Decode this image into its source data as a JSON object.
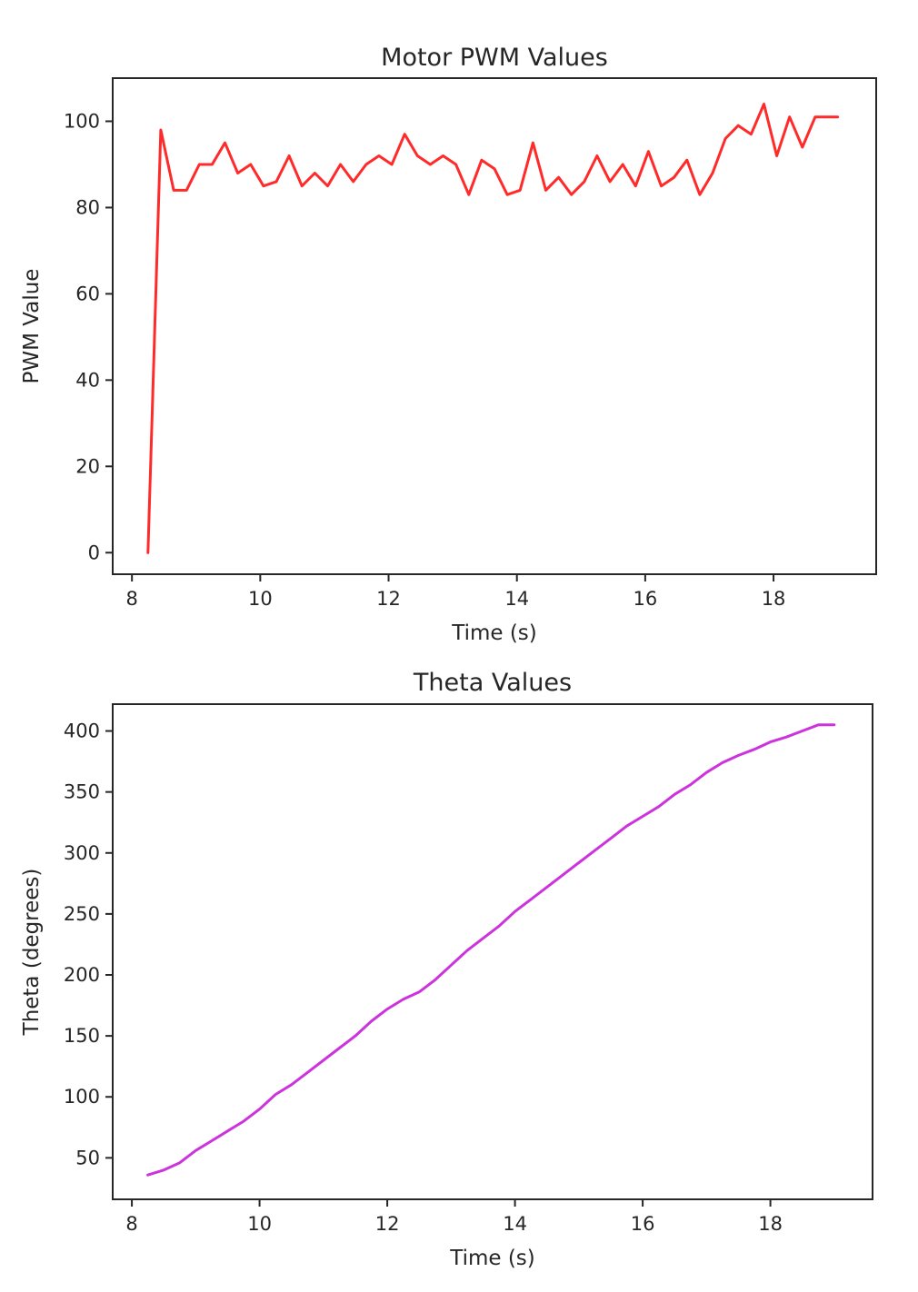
{
  "chart_data": [
    {
      "type": "line",
      "title": "Motor PWM Values",
      "xlabel": "Time (s)",
      "ylabel": "PWM Value",
      "xlim": [
        7.7,
        19.6
      ],
      "ylim": [
        -5,
        110
      ],
      "xticks": [
        8,
        10,
        12,
        14,
        16,
        18
      ],
      "yticks": [
        0,
        20,
        40,
        60,
        80,
        100
      ],
      "grid": false,
      "series": [
        {
          "color": "#ff2a2a",
          "x": [
            8.25,
            8.45,
            8.65,
            8.85,
            9.05,
            9.25,
            9.45,
            9.65,
            9.85,
            10.05,
            10.25,
            10.45,
            10.65,
            10.85,
            11.05,
            11.25,
            11.45,
            11.65,
            11.85,
            12.05,
            12.25,
            12.45,
            12.65,
            12.85,
            13.05,
            13.25,
            13.45,
            13.65,
            13.85,
            14.05,
            14.25,
            14.45,
            14.65,
            14.85,
            15.05,
            15.25,
            15.45,
            15.65,
            15.85,
            16.05,
            16.25,
            16.45,
            16.65,
            16.85,
            17.05,
            17.25,
            17.45,
            17.65,
            17.85,
            18.05,
            18.25,
            18.45,
            18.65,
            18.85,
            19.0
          ],
          "y": [
            0,
            98,
            84,
            84,
            90,
            90,
            95,
            88,
            90,
            85,
            86,
            92,
            85,
            88,
            85,
            90,
            86,
            90,
            92,
            90,
            97,
            92,
            90,
            92,
            90,
            83,
            91,
            89,
            83,
            84,
            95,
            84,
            87,
            83,
            86,
            92,
            86,
            90,
            85,
            93,
            85,
            87,
            91,
            83,
            88,
            96,
            99,
            97,
            104,
            92,
            101,
            94,
            101,
            101,
            101
          ]
        }
      ]
    },
    {
      "type": "line",
      "title": "Theta Values",
      "xlabel": "Time (s)",
      "ylabel": "Theta (degrees)",
      "xlim": [
        7.7,
        19.6
      ],
      "ylim": [
        16,
        422
      ],
      "xticks": [
        8,
        10,
        12,
        14,
        16,
        18
      ],
      "yticks": [
        50,
        100,
        150,
        200,
        250,
        300,
        350,
        400
      ],
      "grid": false,
      "series": [
        {
          "color": "#cc33dd",
          "x": [
            8.25,
            8.5,
            8.75,
            9.0,
            9.25,
            9.5,
            9.75,
            10.0,
            10.25,
            10.5,
            10.75,
            11.0,
            11.25,
            11.5,
            11.75,
            12.0,
            12.25,
            12.5,
            12.75,
            13.0,
            13.25,
            13.5,
            13.75,
            14.0,
            14.25,
            14.5,
            14.75,
            15.0,
            15.25,
            15.5,
            15.75,
            16.0,
            16.25,
            16.5,
            16.75,
            17.0,
            17.25,
            17.5,
            17.75,
            18.0,
            18.25,
            18.5,
            18.75,
            19.0
          ],
          "y": [
            36,
            40,
            46,
            56,
            64,
            72,
            80,
            90,
            102,
            110,
            120,
            130,
            140,
            150,
            162,
            172,
            180,
            186,
            196,
            208,
            220,
            230,
            240,
            252,
            262,
            272,
            282,
            292,
            302,
            312,
            322,
            330,
            338,
            348,
            356,
            366,
            374,
            380,
            385,
            391,
            395,
            400,
            405,
            405
          ]
        }
      ]
    }
  ]
}
